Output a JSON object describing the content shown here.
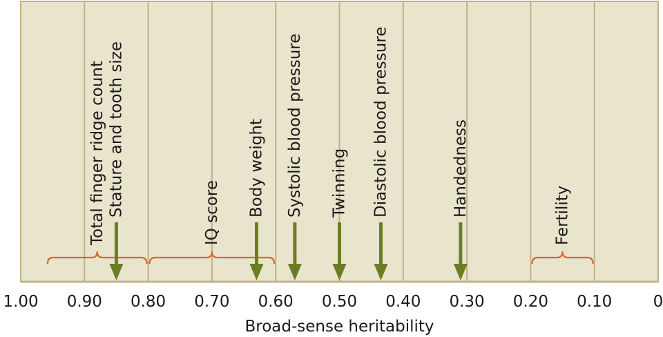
{
  "chart_data": {
    "type": "annotated-scale",
    "xlabel": "Broad-sense heritability",
    "xlim": [
      1.0,
      0.0
    ],
    "x_ticks": [
      {
        "value": 1.0,
        "label": "1.00"
      },
      {
        "value": 0.9,
        "label": "0.90"
      },
      {
        "value": 0.8,
        "label": "0.80"
      },
      {
        "value": 0.7,
        "label": "0.70"
      },
      {
        "value": 0.6,
        "label": "0.60"
      },
      {
        "value": 0.5,
        "label": "0.50"
      },
      {
        "value": 0.4,
        "label": "0.40"
      },
      {
        "value": 0.3,
        "label": "0.30"
      },
      {
        "value": 0.2,
        "label": "0.20"
      },
      {
        "value": 0.1,
        "label": "0.10"
      },
      {
        "value": 0.0,
        "label": "0"
      }
    ],
    "grid": true,
    "colors": {
      "panel": "#e9e4cc",
      "grid": "#bdb38a",
      "arrow": "#6b7d22",
      "bracket": "#d9682a",
      "text": "#1a1a1a"
    },
    "points": [
      {
        "label": "Stature and tooth size",
        "value": 0.85
      },
      {
        "label": "Body weight",
        "value": 0.63
      },
      {
        "label": "Systolic blood pressure",
        "value": 0.57
      },
      {
        "label": "Twinning",
        "value": 0.5
      },
      {
        "label": "Diastolic blood pressure",
        "value": 0.435
      },
      {
        "label": "Handedness",
        "value": 0.31
      }
    ],
    "ranges": [
      {
        "label": "Total finger ridge count",
        "from": 0.96,
        "to": 0.8
      },
      {
        "label": "IQ score",
        "from": 0.8,
        "to": 0.6
      },
      {
        "label": "Fertility",
        "from": 0.2,
        "to": 0.1
      }
    ]
  }
}
